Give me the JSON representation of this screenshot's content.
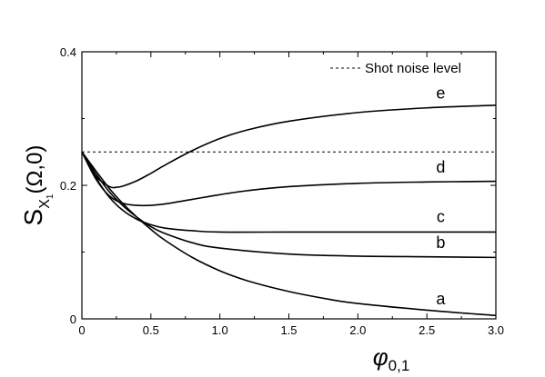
{
  "chart_data": {
    "type": "line",
    "xlabel": {
      "symbol": "φ",
      "subscript": "0,1"
    },
    "ylabel": {
      "main": "S",
      "sub": "X",
      "subsub": "1",
      "arg": "(Ω,0)"
    },
    "xlim": [
      0,
      3.0
    ],
    "ylim": [
      0,
      0.4
    ],
    "x_ticks": [
      0,
      0.5,
      1.0,
      1.5,
      2.0,
      2.5,
      3.0
    ],
    "x_tick_labels": [
      "0",
      "0.5",
      "1.0",
      "1.5",
      "2.0",
      "2.5",
      "3.0"
    ],
    "y_ticks": [
      0,
      0.2,
      0.4
    ],
    "y_tick_labels": [
      "0",
      "0.2",
      "0.4"
    ],
    "legend": {
      "label": "Shot noise level",
      "position": "top-right",
      "style": "dashed"
    },
    "reference_line": {
      "y": 0.25,
      "style": "dashed"
    },
    "series": [
      {
        "name": "a",
        "x": [
          0,
          0.1,
          0.2,
          0.3,
          0.4,
          0.5,
          0.6,
          0.8,
          1.0,
          1.2,
          1.5,
          1.8,
          2.0,
          2.5,
          3.0
        ],
        "y": [
          0.25,
          0.222,
          0.195,
          0.172,
          0.152,
          0.134,
          0.118,
          0.092,
          0.072,
          0.057,
          0.041,
          0.029,
          0.023,
          0.013,
          0.005
        ]
      },
      {
        "name": "b",
        "x": [
          0,
          0.1,
          0.2,
          0.3,
          0.4,
          0.5,
          0.6,
          0.8,
          1.0,
          1.5,
          2.0,
          2.5,
          3.0
        ],
        "y": [
          0.25,
          0.218,
          0.19,
          0.169,
          0.152,
          0.138,
          0.128,
          0.114,
          0.106,
          0.097,
          0.094,
          0.093,
          0.092
        ]
      },
      {
        "name": "c",
        "x": [
          0,
          0.1,
          0.2,
          0.3,
          0.4,
          0.5,
          0.6,
          0.8,
          1.0,
          1.5,
          2.0,
          2.5,
          3.0
        ],
        "y": [
          0.25,
          0.212,
          0.182,
          0.162,
          0.149,
          0.141,
          0.136,
          0.132,
          0.13,
          0.13,
          0.13,
          0.13,
          0.13
        ]
      },
      {
        "name": "d",
        "x": [
          0,
          0.1,
          0.2,
          0.3,
          0.4,
          0.5,
          0.6,
          0.8,
          1.0,
          1.2,
          1.5,
          2.0,
          2.5,
          3.0
        ],
        "y": [
          0.25,
          0.21,
          0.184,
          0.173,
          0.17,
          0.17,
          0.172,
          0.179,
          0.186,
          0.192,
          0.198,
          0.203,
          0.205,
          0.206
        ]
      },
      {
        "name": "e",
        "x": [
          0,
          0.1,
          0.2,
          0.25,
          0.3,
          0.4,
          0.5,
          0.6,
          0.8,
          1.0,
          1.2,
          1.5,
          2.0,
          2.5,
          3.0
        ],
        "y": [
          0.25,
          0.214,
          0.198,
          0.197,
          0.199,
          0.207,
          0.218,
          0.23,
          0.252,
          0.27,
          0.283,
          0.296,
          0.309,
          0.316,
          0.32
        ]
      }
    ],
    "series_label_text": [
      "a",
      "b",
      "c",
      "d",
      "e"
    ]
  }
}
